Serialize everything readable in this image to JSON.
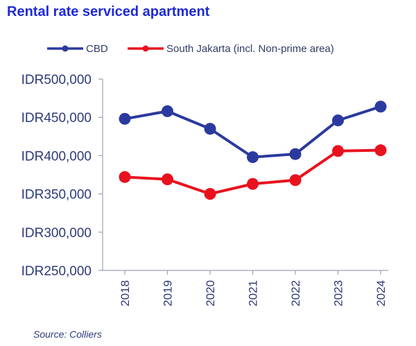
{
  "chart_data": {
    "type": "line",
    "title": "Rental rate serviced apartment",
    "source": "Source: Colliers",
    "categories": [
      "2018",
      "2019",
      "2020",
      "2021",
      "2022",
      "2023",
      "2024"
    ],
    "ylim": [
      250000,
      500000
    ],
    "yticks": [
      500000,
      450000,
      400000,
      350000,
      300000,
      250000
    ],
    "ytick_labels": [
      "IDR500,000",
      "IDR450,000",
      "IDR400,000",
      "IDR350,000",
      "IDR300,000",
      "IDR250,000"
    ],
    "grid": false,
    "legend_position": "top",
    "series": [
      {
        "name": "CBD",
        "color": "#2b3a9e",
        "values": [
          448000,
          458000,
          435000,
          398000,
          402000,
          446000,
          464000
        ]
      },
      {
        "name": "South Jakarta (incl. Non-prime area)",
        "color": "#e8121e",
        "values": [
          372000,
          369000,
          350000,
          363000,
          368000,
          406000,
          407000
        ]
      }
    ]
  }
}
